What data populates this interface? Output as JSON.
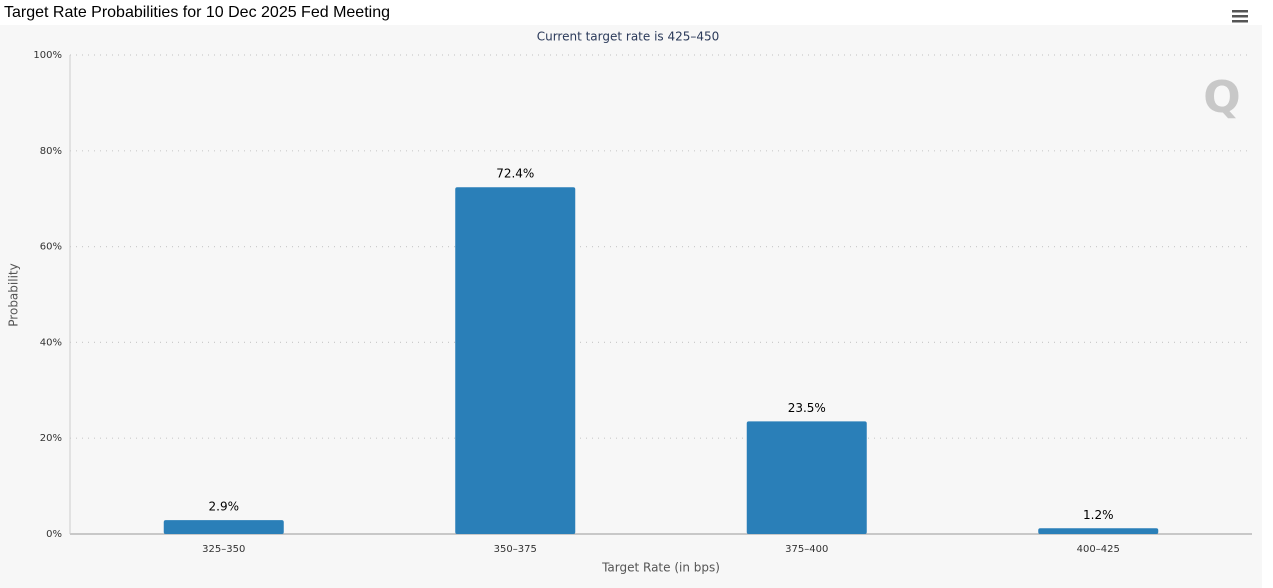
{
  "chart_data": {
    "type": "bar",
    "title": "Target Rate Probabilities for 10 Dec 2025 Fed Meeting",
    "subtitle": "Current target rate is 425–450",
    "y_label": "Probability",
    "x_label": "Target Rate (in bps)",
    "categories": [
      "325–350",
      "350–375",
      "375–400",
      "400–425"
    ],
    "values": [
      2.9,
      72.4,
      23.5,
      1.2
    ],
    "value_labels": [
      "2.9%",
      "72.4%",
      "23.5%",
      "1.2%"
    ],
    "color": "#2a7fb8",
    "ylim": [
      0,
      100
    ],
    "yticks": [
      {
        "value": 0,
        "label": "0%"
      },
      {
        "value": 20,
        "label": "20%"
      },
      {
        "value": 40,
        "label": "40%"
      },
      {
        "value": 60,
        "label": "60%"
      },
      {
        "value": 80,
        "label": "80%"
      },
      {
        "value": 100,
        "label": "100%"
      }
    ],
    "grid": true
  }
}
